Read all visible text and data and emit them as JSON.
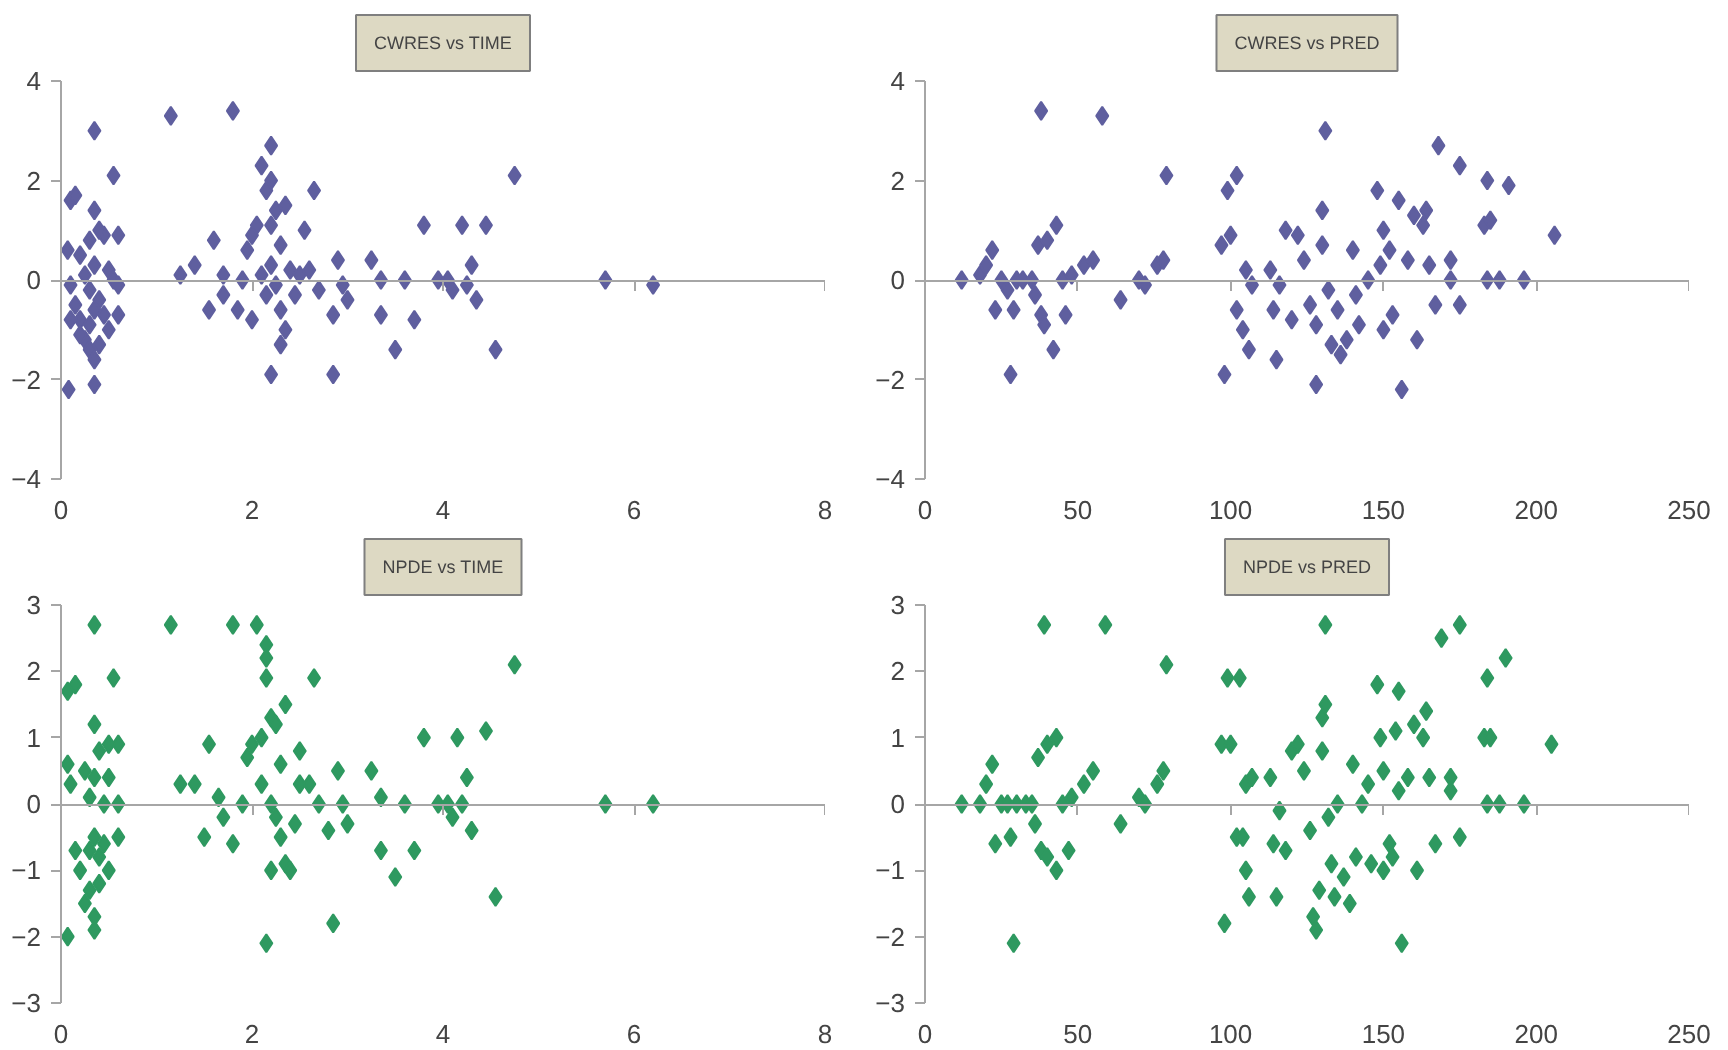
{
  "chart_data": [
    {
      "type": "scatter",
      "title": "CWRES vs TIME",
      "marker": "diamond",
      "xlim": [
        0,
        8
      ],
      "xticks": [
        0,
        2,
        4,
        6,
        8
      ],
      "ylim": [
        -4,
        4
      ],
      "yticks": [
        -4,
        -2,
        0,
        2,
        4
      ],
      "series": [
        {
          "color": "#5f5f9f",
          "x": [
            0.1,
            0.15,
            0.35,
            0.55,
            0.35,
            0.07,
            0.6,
            0.45,
            0.4,
            0.3,
            0.2,
            0.35,
            0.5,
            0.1,
            0.25,
            0.3,
            0.4,
            0.55,
            0.6,
            0.15,
            0.2,
            0.3,
            0.35,
            0.45,
            0.5,
            0.6,
            0.25,
            0.3,
            0.35,
            0.4,
            0.1,
            0.08,
            0.35,
            0.2,
            1.15,
            1.8,
            1.25,
            1.4,
            1.55,
            1.6,
            1.7,
            1.7,
            1.85,
            1.9,
            1.95,
            2.0,
            2.05,
            2.1,
            2.2,
            2.2,
            2.15,
            2.25,
            2.35,
            2.2,
            2.0,
            2.1,
            2.15,
            2.2,
            2.25,
            2.3,
            2.3,
            2.35,
            2.3,
            2.2,
            2.4,
            2.45,
            2.5,
            2.55,
            2.65,
            2.6,
            2.7,
            2.85,
            2.85,
            2.9,
            2.95,
            3.0,
            3.25,
            3.35,
            3.35,
            3.5,
            3.6,
            3.7,
            3.8,
            3.95,
            4.05,
            4.1,
            4.2,
            4.25,
            4.3,
            4.35,
            4.45,
            4.55,
            4.75,
            5.7,
            6.2
          ],
          "values": [
            1.6,
            1.7,
            3.0,
            2.1,
            1.4,
            0.6,
            0.9,
            0.9,
            1.0,
            0.8,
            0.5,
            0.3,
            0.2,
            -0.1,
            0.1,
            -0.2,
            -0.4,
            0,
            -0.1,
            -0.5,
            -0.8,
            -0.9,
            -0.6,
            -0.7,
            -1.0,
            -0.7,
            -1.2,
            -1.4,
            -1.6,
            -1.3,
            -0.8,
            -2.2,
            -2.1,
            -1.1,
            3.3,
            3.4,
            0.1,
            0.3,
            -0.6,
            0.8,
            0.1,
            -0.3,
            -0.6,
            0,
            0.6,
            0.9,
            1.1,
            2.3,
            2.7,
            2.0,
            1.8,
            1.4,
            1.5,
            1.1,
            -0.8,
            0.1,
            -0.3,
            0.3,
            -0.1,
            0.7,
            -0.6,
            -1.0,
            -1.3,
            -1.9,
            0.2,
            -0.3,
            0.1,
            1.0,
            1.8,
            0.2,
            -0.2,
            -0.7,
            -1.9,
            0.4,
            -0.1,
            -0.4,
            0.4,
            0,
            -0.7,
            -1.4,
            0,
            -0.8,
            1.1,
            0,
            0,
            -0.2,
            1.1,
            -0.1,
            0.3,
            -0.4,
            1.1,
            -1.4,
            2.1,
            0,
            -0.1
          ]
        }
      ]
    },
    {
      "type": "scatter",
      "title": "CWRES vs PRED",
      "marker": "diamond",
      "xlim": [
        0,
        250
      ],
      "xticks": [
        0,
        50,
        100,
        150,
        200,
        250
      ],
      "ylim": [
        -4,
        4
      ],
      "yticks": [
        -4,
        -2,
        0,
        2,
        4
      ],
      "series": [
        {
          "color": "#5f5f9f",
          "x": [
            12,
            18,
            20,
            22,
            23,
            25,
            27,
            28,
            29,
            30,
            32,
            35,
            36,
            37,
            38,
            38,
            39,
            40,
            42,
            43,
            45,
            46,
            48,
            52,
            55,
            58,
            64,
            70,
            72,
            76,
            78,
            79,
            97,
            98,
            99,
            100,
            102,
            102,
            104,
            105,
            106,
            107,
            113,
            114,
            115,
            116,
            118,
            120,
            122,
            124,
            126,
            128,
            128,
            130,
            130,
            131,
            132,
            133,
            135,
            136,
            138,
            140,
            141,
            142,
            145,
            148,
            149,
            150,
            150,
            152,
            153,
            155,
            156,
            158,
            160,
            161,
            163,
            164,
            165,
            167,
            168,
            172,
            172,
            175,
            175,
            183,
            184,
            184,
            185,
            188,
            191,
            196,
            206
          ],
          "values": [
            0,
            0.1,
            0.3,
            0.6,
            -0.6,
            0,
            -0.2,
            -1.9,
            -0.6,
            0,
            0,
            0,
            -0.3,
            0.7,
            -0.7,
            3.4,
            -0.9,
            0.8,
            -1.4,
            1.1,
            0,
            -0.7,
            0.1,
            0.3,
            0.4,
            3.3,
            -0.4,
            0,
            -0.1,
            0.3,
            0.4,
            2.1,
            0.7,
            -1.9,
            1.8,
            0.9,
            2.1,
            -0.6,
            -1.0,
            0.2,
            -1.4,
            -0.1,
            0.2,
            -0.6,
            -1.6,
            -0.1,
            1.0,
            -0.8,
            0.9,
            0.4,
            -0.5,
            -2.1,
            -0.9,
            1.4,
            0.7,
            3.0,
            -0.2,
            -1.3,
            -0.6,
            -1.5,
            -1.2,
            0.6,
            -0.3,
            -0.9,
            0,
            1.8,
            0.3,
            1.0,
            -1.0,
            0.6,
            -0.7,
            1.6,
            -2.2,
            0.4,
            1.3,
            -1.2,
            1.1,
            1.4,
            0.3,
            -0.5,
            2.7,
            0.4,
            0,
            2.3,
            -0.5,
            1.1,
            2.0,
            0,
            1.2,
            0,
            1.9,
            0,
            0.9
          ]
        }
      ]
    },
    {
      "type": "scatter",
      "title": "NPDE vs TIME",
      "marker": "diamond",
      "xlim": [
        0,
        8
      ],
      "xticks": [
        0,
        2,
        4,
        6,
        8
      ],
      "ylim": [
        -3,
        3
      ],
      "yticks": [
        -3,
        -2,
        -1,
        0,
        1,
        2,
        3
      ],
      "series": [
        {
          "color": "#2e9960",
          "x": [
            0.07,
            0.15,
            0.35,
            0.55,
            0.35,
            0.07,
            0.6,
            0.5,
            0.4,
            0.25,
            0.1,
            0.35,
            0.5,
            0.3,
            0.45,
            0.6,
            0.15,
            0.2,
            0.3,
            0.35,
            0.4,
            0.45,
            0.6,
            0.5,
            0.25,
            0.3,
            0.35,
            0.35,
            0.07,
            0.4,
            1.15,
            1.8,
            2.05,
            2.15,
            2.15,
            2.15,
            2.65,
            1.25,
            1.4,
            1.5,
            1.55,
            1.65,
            1.7,
            1.8,
            1.9,
            1.95,
            2.0,
            2.1,
            2.2,
            2.25,
            2.35,
            2.1,
            2.2,
            2.25,
            2.3,
            2.3,
            2.35,
            2.2,
            2.4,
            2.15,
            2.45,
            2.5,
            2.5,
            2.6,
            2.7,
            2.8,
            2.85,
            2.9,
            2.95,
            3.0,
            3.25,
            3.35,
            3.35,
            3.5,
            3.6,
            3.7,
            3.8,
            3.95,
            4.05,
            4.1,
            4.15,
            4.2,
            4.25,
            4.3,
            4.45,
            4.55,
            4.75,
            5.7,
            6.2
          ],
          "values": [
            1.7,
            1.8,
            2.7,
            1.9,
            1.2,
            0.6,
            0.9,
            0.9,
            0.8,
            0.5,
            0.3,
            0.4,
            0.4,
            0.1,
            0,
            0,
            -0.7,
            -1.0,
            -0.7,
            -0.5,
            -0.8,
            -0.6,
            -0.5,
            -1.0,
            -1.5,
            -1.3,
            -1.7,
            -1.9,
            -2.0,
            -1.2,
            2.7,
            2.7,
            2.7,
            2.4,
            2.2,
            1.9,
            1.9,
            0.3,
            0.3,
            -0.5,
            0.9,
            0.1,
            -0.2,
            -0.6,
            0,
            0.7,
            0.9,
            1.0,
            1.3,
            1.2,
            1.5,
            0.3,
            0,
            -0.2,
            0.6,
            -0.5,
            -0.9,
            -1.0,
            -1.0,
            -2.1,
            -0.3,
            0.3,
            0.8,
            0.3,
            0,
            -0.4,
            -1.8,
            0.5,
            0,
            -0.3,
            0.5,
            0.1,
            -0.7,
            -1.1,
            0,
            -0.7,
            1.0,
            0,
            0,
            -0.2,
            1.0,
            0,
            0.4,
            -0.4,
            1.1,
            -1.4,
            2.1,
            0,
            0
          ]
        }
      ]
    },
    {
      "type": "scatter",
      "title": "NPDE vs PRED",
      "marker": "diamond",
      "xlim": [
        0,
        250
      ],
      "xticks": [
        0,
        50,
        100,
        150,
        200,
        250
      ],
      "ylim": [
        -3,
        3
      ],
      "yticks": [
        -3,
        -2,
        -1,
        0,
        1,
        2,
        3
      ],
      "series": [
        {
          "color": "#2e9960",
          "x": [
            12,
            18,
            20,
            22,
            23,
            25,
            27,
            28,
            29,
            30,
            33,
            35,
            36,
            37,
            38,
            39,
            40,
            40,
            43,
            43,
            45,
            47,
            48,
            52,
            55,
            59,
            64,
            70,
            72,
            76,
            78,
            79,
            97,
            98,
            99,
            100,
            102,
            103,
            104,
            105,
            105,
            106,
            107,
            113,
            114,
            115,
            116,
            118,
            120,
            122,
            124,
            126,
            127,
            128,
            129,
            130,
            130,
            131,
            131,
            132,
            133,
            134,
            135,
            137,
            139,
            140,
            141,
            143,
            145,
            146,
            148,
            149,
            150,
            150,
            152,
            153,
            154,
            155,
            155,
            156,
            158,
            160,
            161,
            163,
            164,
            165,
            167,
            169,
            172,
            172,
            175,
            175,
            183,
            184,
            184,
            185,
            188,
            190,
            196,
            205
          ],
          "values": [
            0,
            0,
            0.3,
            0.6,
            -0.6,
            0,
            0,
            -0.5,
            -2.1,
            0,
            0,
            0,
            -0.3,
            0.7,
            -0.7,
            2.7,
            0.9,
            -0.8,
            1.0,
            -1.0,
            0,
            -0.7,
            0.1,
            0.3,
            0.5,
            2.7,
            -0.3,
            0.1,
            0,
            0.3,
            0.5,
            2.1,
            0.9,
            -1.8,
            1.9,
            0.9,
            -0.5,
            1.9,
            -0.5,
            -1.0,
            0.3,
            -1.4,
            0.4,
            0.4,
            -0.6,
            -1.4,
            -0.1,
            -0.7,
            0.8,
            0.9,
            0.5,
            -0.4,
            -1.7,
            -1.9,
            -1.3,
            1.3,
            0.8,
            1.5,
            2.7,
            -0.2,
            -0.9,
            -1.4,
            0,
            -1.1,
            -1.5,
            0.6,
            -0.8,
            0,
            0.3,
            -0.9,
            1.8,
            1.0,
            -1.0,
            0.5,
            -0.6,
            -0.8,
            1.1,
            1.7,
            0.2,
            -2.1,
            0.4,
            1.2,
            -1.0,
            1.0,
            1.4,
            0.4,
            -0.6,
            2.5,
            0.4,
            0.2,
            2.7,
            -0.5,
            1.0,
            1.9,
            0,
            1.0,
            0,
            2.2,
            0,
            0.9
          ]
        }
      ]
    }
  ]
}
